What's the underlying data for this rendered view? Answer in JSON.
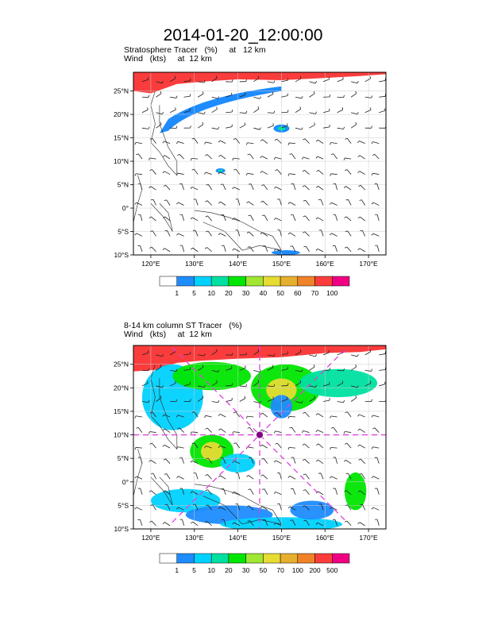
{
  "title": "2014-01-20_12:00:00",
  "panels": [
    {
      "line1": "Stratosphere Tracer   (%)     at   12 km",
      "line2": "Wind   (kts)     at  12 km",
      "colorbar_labels": [
        "1",
        "5",
        "10",
        "20",
        "30",
        "40",
        "50",
        "60",
        "70",
        "100"
      ],
      "colors": [
        "#ffffff",
        "#1e8cff",
        "#00d2ff",
        "#00e0a0",
        "#00e600",
        "#a0e632",
        "#e6dc32",
        "#e6af2d",
        "#f08228",
        "#fa3c3c",
        "#f00082"
      ]
    },
    {
      "line1": "8-14 km column ST Tracer   (%)",
      "line2": "Wind   (kts)     at  12 km",
      "colorbar_labels": [
        "1",
        "5",
        "10",
        "20",
        "30",
        "50",
        "70",
        "100",
        "200",
        "500"
      ],
      "colors": [
        "#ffffff",
        "#1e8cff",
        "#00d2ff",
        "#00e0a0",
        "#00e600",
        "#a0e632",
        "#e6dc32",
        "#e6af2d",
        "#f08228",
        "#fa3c3c",
        "#f00082"
      ]
    }
  ],
  "axes": {
    "lon_labels": [
      "120°E",
      "130°E",
      "140°E",
      "150°E",
      "160°E",
      "170°E"
    ],
    "lat_labels": [
      "25°N",
      "20°N",
      "15°N",
      "10°N",
      "5°N",
      "0°",
      "5°S",
      "10°S"
    ]
  },
  "chart_data": {
    "type": "heatmap",
    "lon_range": [
      116,
      174
    ],
    "lat_range": [
      -10,
      29
    ],
    "lon_ticks": [
      120,
      130,
      140,
      150,
      160,
      170
    ],
    "lat_ticks": [
      25,
      20,
      15,
      10,
      5,
      0,
      -5,
      -10
    ],
    "grid": true,
    "marker": {
      "lon": 145,
      "lat": 10
    },
    "colors": {
      "fill_high": "#fa3c3c",
      "fill_mid": "#00e600",
      "fill_low": "#1e8cff",
      "marker_line": "#e040e0",
      "marker_dot": "#800080"
    }
  }
}
